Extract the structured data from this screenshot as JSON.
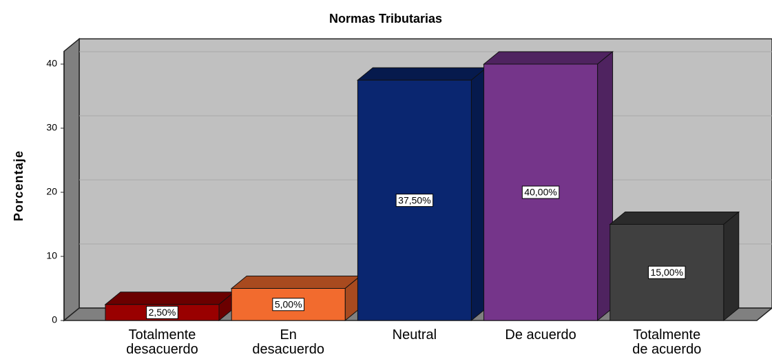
{
  "chart_data": {
    "type": "bar3d",
    "title": "Normas Tributarias",
    "y_label": "Porcentaje",
    "categories": [
      "Totalmente desacuerdo",
      "En desacuerdo",
      "Neutral",
      "De acuerdo",
      "Totalmente de acuerdo"
    ],
    "values": [
      2.5,
      5,
      37.5,
      40,
      15
    ],
    "value_labels": [
      "2,50%",
      "5,00%",
      "37,50%",
      "40,00%",
      "15,00%"
    ],
    "colors": [
      "#990000",
      "#f26b2e",
      "#0a2670",
      "#75358a",
      "#404040"
    ],
    "side_colors": [
      "#6b0000",
      "#a84a1f",
      "#061a4d",
      "#4f2360",
      "#2b2b2b"
    ],
    "ylim": [
      0,
      42
    ],
    "yticks": [
      0,
      10,
      20,
      30,
      40
    ],
    "grid": true
  }
}
